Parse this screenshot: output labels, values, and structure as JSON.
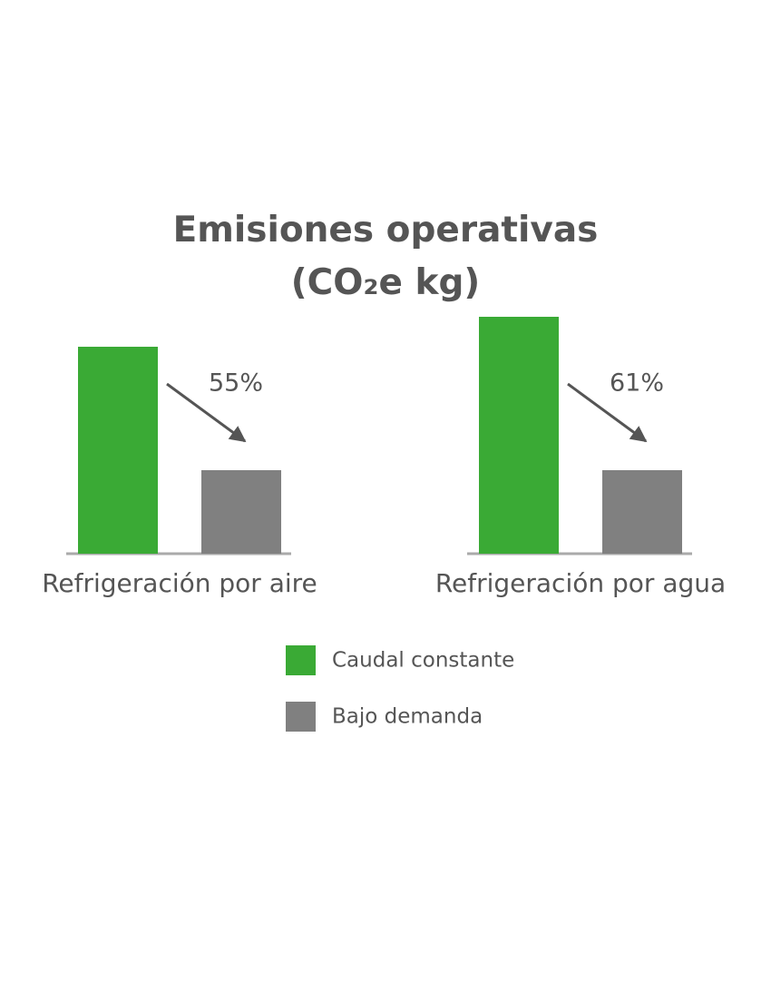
{
  "chart_data": {
    "type": "bar",
    "title": "Emisiones operativas (CO₂e kg)",
    "categories": [
      "Refrigeración por aire",
      "Refrigeración por agua"
    ],
    "series": [
      {
        "name": "Caudal constante",
        "color": "#3aaa35",
        "values": [
          228,
          261
        ]
      },
      {
        "name": "Bajo demanda",
        "color": "#808080",
        "values": [
          92,
          92
        ]
      }
    ],
    "annotations": [
      "55%",
      "61%"
    ],
    "ylim": [
      0,
      300
    ],
    "legend": "bottom"
  }
}
